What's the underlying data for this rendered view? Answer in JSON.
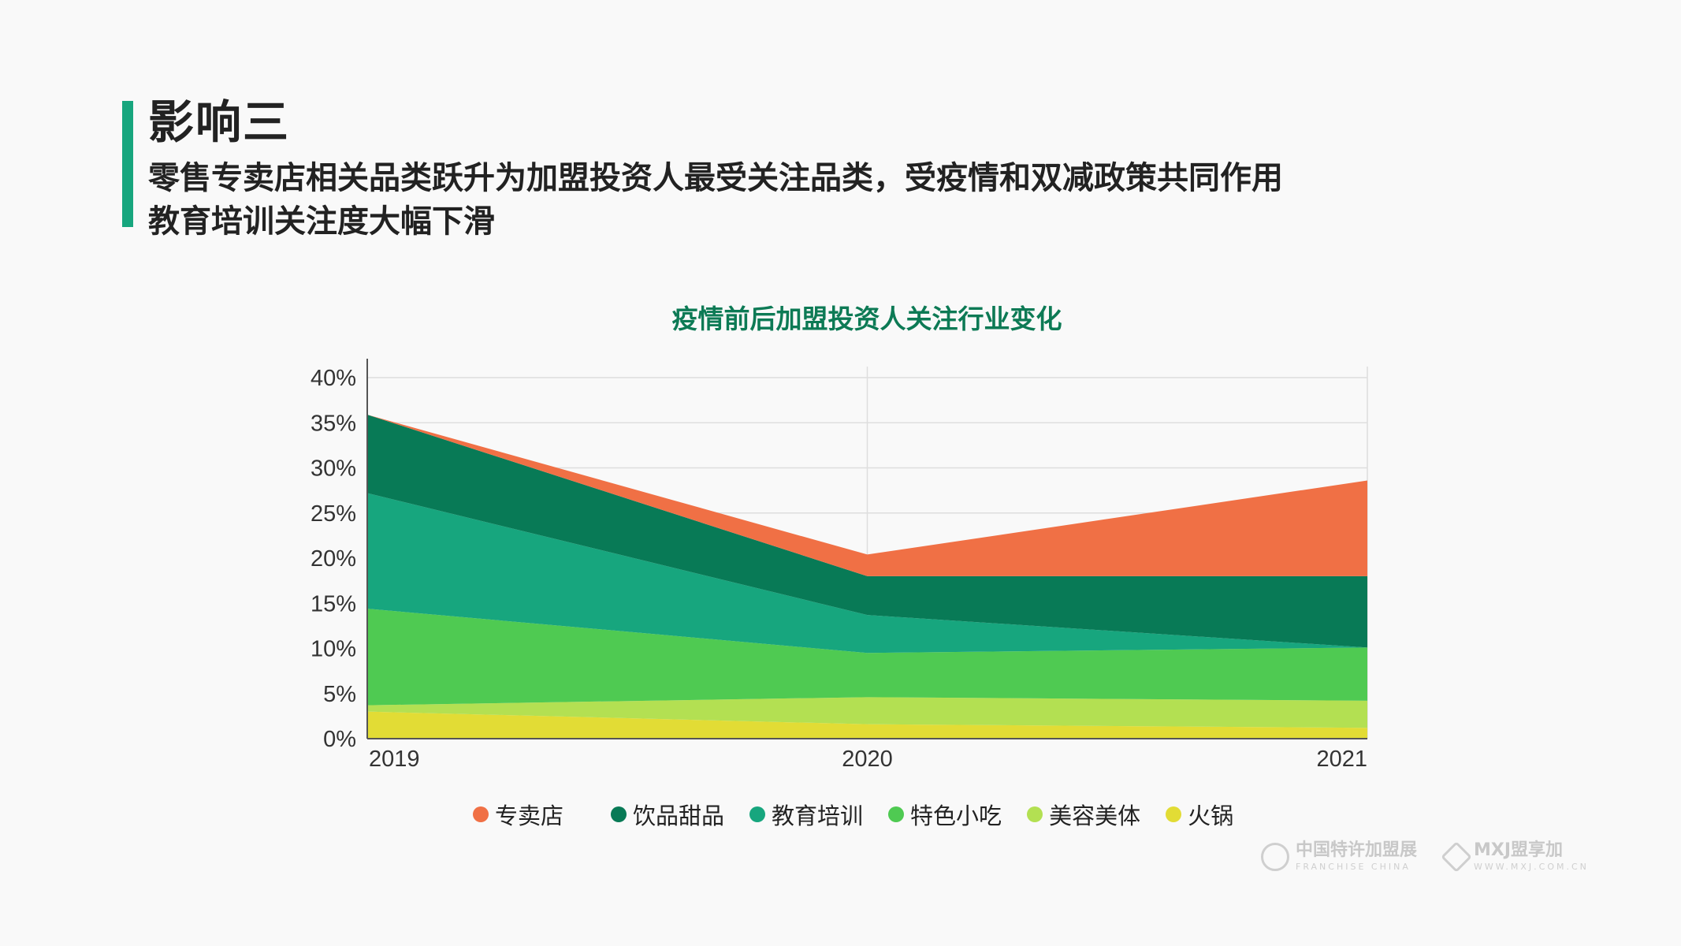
{
  "header": {
    "heading": "影响三",
    "subtitle_line1": "零售专卖店相关品类跃升为加盟投资人最受关注品类，受疫情和双减政策共同作用",
    "subtitle_line2": "教育培训关注度大幅下滑"
  },
  "logos": {
    "logo1_cn": "中国特许加盟展",
    "logo1_en": "FRANCHISE CHINA",
    "logo2_cn": "MXJ盟享加",
    "logo2_en": "WWW.MXJ.COM.CN"
  },
  "chart_data": {
    "type": "area",
    "stacked": true,
    "title": "疫情前后加盟投资人关注行业变化",
    "x": [
      "2019",
      "2020",
      "2021"
    ],
    "ylim": [
      0,
      40
    ],
    "yticks": [
      0,
      5,
      10,
      15,
      20,
      25,
      30,
      35,
      40
    ],
    "ytick_labels": [
      "0%",
      "5%",
      "10%",
      "15%",
      "20%",
      "25%",
      "30%",
      "35%",
      "40%"
    ],
    "grid": true,
    "legend_position": "bottom",
    "series": [
      {
        "name": "火锅",
        "color": "#e2dc35",
        "values": [
          3.0,
          1.6,
          1.2
        ]
      },
      {
        "name": "美容美体",
        "color": "#b3e052",
        "values": [
          0.7,
          3.0,
          3.0
        ]
      },
      {
        "name": "特色小吃",
        "color": "#4fca52",
        "values": [
          10.7,
          4.9,
          5.9
        ]
      },
      {
        "name": "教育培训",
        "color": "#17a67e",
        "values": [
          12.8,
          4.2,
          0.0
        ]
      },
      {
        "name": "饮品甜品",
        "color": "#087a56",
        "values": [
          8.7,
          4.3,
          7.9
        ]
      },
      {
        "name": "专卖店",
        "color": "#f07045",
        "values": [
          0.0,
          2.4,
          10.6
        ]
      }
    ],
    "legend_order": [
      "专卖店",
      "饮品甜品",
      "教育培训",
      "特色小吃",
      "美容美体",
      "火锅"
    ]
  }
}
